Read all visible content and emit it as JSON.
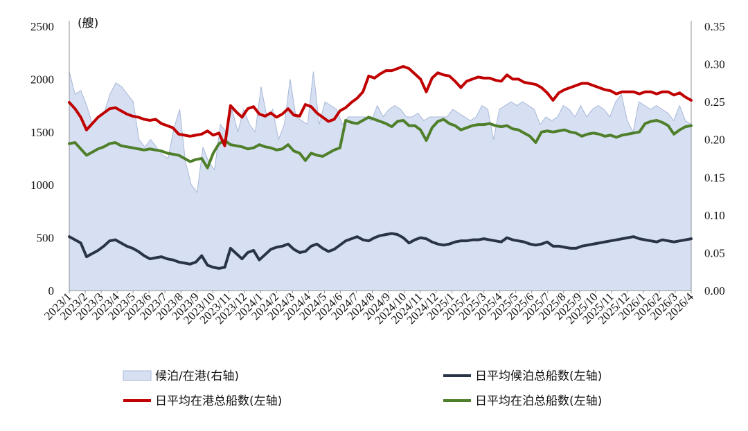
{
  "chart_data": {
    "type": "line",
    "unit_label": "(艘)",
    "left_axis": {
      "ylim": [
        0,
        2500
      ],
      "ticks": [
        "0",
        "500",
        "1000",
        "1500",
        "2000",
        "2500"
      ]
    },
    "right_axis": {
      "ylim": [
        0,
        0.35
      ],
      "ticks": [
        "0.00",
        "0.05",
        "0.10",
        "0.15",
        "0.20",
        "0.25",
        "0.30",
        "0.35"
      ]
    },
    "x_ticks": [
      "2023/1",
      "2023/2",
      "2023/3",
      "2023/4",
      "2023/5",
      "2023/6",
      "2023/7",
      "2023/8",
      "2023/9",
      "2023/10",
      "2023/11",
      "2023/12",
      "2024/1",
      "2024/2",
      "2024/3",
      "2024/4",
      "2024/5",
      "2024/6",
      "2024/7",
      "2024/8",
      "2024/9",
      "2024/10",
      "2024/11",
      "2024/12",
      "2025/1",
      "2025/2",
      "2025/3",
      "2025/4",
      "2025/5",
      "2025/6",
      "2025/7",
      "2025/8",
      "2025/9",
      "2025/10",
      "2025/11",
      "2025/12",
      "2026/1",
      "2026/2",
      "2026/3",
      "2026/4"
    ],
    "grid": false,
    "legend_position": "bottom",
    "series": [
      {
        "name": "候泊/在港(右轴)",
        "type": "area",
        "axis": "right",
        "color": "#d6e0f2",
        "edge_color": "#a8b8d8",
        "values": [
          0.29,
          0.26,
          0.265,
          0.245,
          0.22,
          0.23,
          0.235,
          0.26,
          0.275,
          0.27,
          0.26,
          0.25,
          0.2,
          0.19,
          0.2,
          0.19,
          0.18,
          0.175,
          0.215,
          0.24,
          0.17,
          0.14,
          0.13,
          0.19,
          0.17,
          0.16,
          0.22,
          0.21,
          0.24,
          0.21,
          0.24,
          0.22,
          0.21,
          0.27,
          0.23,
          0.24,
          0.2,
          0.22,
          0.28,
          0.23,
          0.225,
          0.22,
          0.29,
          0.22,
          0.25,
          0.245,
          0.24,
          0.22,
          0.23,
          0.23,
          0.23,
          0.23,
          0.225,
          0.245,
          0.23,
          0.24,
          0.245,
          0.24,
          0.23,
          0.23,
          0.235,
          0.225,
          0.23,
          0.23,
          0.23,
          0.23,
          0.24,
          0.235,
          0.23,
          0.225,
          0.23,
          0.245,
          0.24,
          0.2,
          0.24,
          0.245,
          0.25,
          0.245,
          0.25,
          0.245,
          0.24,
          0.22,
          0.23,
          0.225,
          0.23,
          0.245,
          0.24,
          0.23,
          0.245,
          0.23,
          0.24,
          0.245,
          0.24,
          0.23,
          0.25,
          0.26,
          0.225,
          0.21,
          0.25,
          0.245,
          0.24,
          0.245,
          0.24,
          0.235,
          0.225,
          0.245,
          0.225,
          0.22
        ]
      },
      {
        "name": "日平均在港总船数(左轴)",
        "type": "line",
        "axis": "left",
        "color": "#c00000",
        "values": [
          1780,
          1720,
          1640,
          1520,
          1580,
          1640,
          1680,
          1720,
          1730,
          1700,
          1670,
          1650,
          1640,
          1620,
          1610,
          1620,
          1580,
          1560,
          1540,
          1480,
          1470,
          1460,
          1470,
          1480,
          1510,
          1470,
          1490,
          1370,
          1750,
          1690,
          1640,
          1720,
          1740,
          1670,
          1650,
          1680,
          1640,
          1670,
          1720,
          1660,
          1650,
          1760,
          1740,
          1680,
          1640,
          1600,
          1620,
          1700,
          1730,
          1780,
          1820,
          1880,
          2030,
          2010,
          2050,
          2080,
          2080,
          2100,
          2120,
          2100,
          2050,
          2000,
          1880,
          2010,
          2060,
          2040,
          2030,
          1980,
          1920,
          1980,
          2000,
          2020,
          2010,
          2010,
          1990,
          1980,
          2040,
          2000,
          2000,
          1970,
          1960,
          1950,
          1920,
          1870,
          1800,
          1870,
          1900,
          1920,
          1940,
          1960,
          1960,
          1940,
          1920,
          1900,
          1890,
          1860,
          1880,
          1880,
          1880,
          1860,
          1880,
          1880,
          1860,
          1880,
          1880,
          1850,
          1870,
          1830,
          1800,
          1980,
          2050,
          2000,
          2020,
          2060,
          2080,
          2060,
          2020,
          1990,
          1960,
          1940,
          1910,
          1900,
          1880,
          1880,
          1860,
          1850,
          1840,
          1830,
          1820,
          1810,
          1800,
          1800,
          1780,
          1760,
          1750,
          1760,
          1780,
          1790,
          1800,
          1810,
          1820,
          1830,
          1850,
          1870,
          1880,
          1900,
          1920,
          1940,
          1960,
          1980,
          2000,
          2020,
          2010,
          2000,
          1990,
          1980,
          1970,
          1960,
          1950,
          1940,
          1930,
          1920,
          1910,
          1900,
          1890,
          1880,
          1870,
          1860,
          1850,
          1840,
          1830,
          1820,
          1810,
          1800,
          1790,
          1780,
          1770,
          1760,
          1750,
          1740,
          1730,
          1720,
          1710
        ]
      },
      {
        "name": "日平均候泊总船数(左轴)",
        "type": "line",
        "axis": "left",
        "color": "#2a3447",
        "values": [
          510,
          480,
          450,
          320,
          350,
          380,
          420,
          470,
          480,
          450,
          420,
          400,
          370,
          330,
          300,
          310,
          320,
          300,
          290,
          270,
          260,
          250,
          270,
          330,
          240,
          220,
          210,
          220,
          400,
          350,
          300,
          360,
          380,
          290,
          340,
          390,
          410,
          420,
          440,
          390,
          360,
          370,
          420,
          440,
          400,
          370,
          390,
          430,
          470,
          490,
          510,
          480,
          470,
          500,
          520,
          530,
          540,
          530,
          500,
          450,
          480,
          500,
          490,
          460,
          440,
          430,
          440,
          460,
          470,
          470,
          480,
          480,
          490,
          480,
          470,
          460,
          500,
          480,
          470,
          460,
          440,
          430,
          440,
          460,
          420,
          420,
          410,
          400,
          400,
          420,
          430,
          440,
          450,
          460,
          470,
          480,
          490,
          500,
          510,
          490,
          480,
          470,
          460,
          480,
          470,
          460,
          470,
          480,
          490,
          470,
          460
        ]
      },
      {
        "name": "日平均在泊总船数(左轴)",
        "type": "line",
        "axis": "left",
        "color": "#4f7f2a",
        "values": [
          1390,
          1400,
          1340,
          1280,
          1310,
          1340,
          1360,
          1390,
          1400,
          1370,
          1360,
          1350,
          1340,
          1330,
          1340,
          1330,
          1320,
          1300,
          1290,
          1280,
          1250,
          1220,
          1240,
          1250,
          1160,
          1300,
          1390,
          1420,
          1380,
          1370,
          1360,
          1340,
          1350,
          1380,
          1360,
          1350,
          1330,
          1340,
          1380,
          1320,
          1300,
          1230,
          1300,
          1280,
          1270,
          1300,
          1330,
          1350,
          1610,
          1590,
          1580,
          1610,
          1640,
          1620,
          1600,
          1580,
          1550,
          1600,
          1610,
          1560,
          1560,
          1520,
          1420,
          1540,
          1600,
          1620,
          1580,
          1560,
          1520,
          1540,
          1560,
          1570,
          1570,
          1580,
          1560,
          1550,
          1560,
          1530,
          1520,
          1490,
          1460,
          1400,
          1500,
          1510,
          1500,
          1510,
          1520,
          1500,
          1490,
          1460,
          1480,
          1490,
          1480,
          1460,
          1470,
          1450,
          1470,
          1480,
          1490,
          1500,
          1580,
          1600,
          1610,
          1590,
          1560,
          1480,
          1520,
          1550,
          1560,
          1500,
          1490,
          1470,
          1450,
          1460,
          1470,
          1480,
          1470,
          1460,
          1450,
          1440,
          1430,
          1420,
          1400,
          1380,
          1360,
          1340,
          1330,
          1320,
          1310,
          1330,
          1350,
          1370,
          1390,
          1410,
          1430,
          1450,
          1470,
          1490,
          1510,
          1530,
          1550,
          1570,
          1590,
          1610,
          1630,
          1650,
          1670,
          1690,
          1680,
          1670,
          1660,
          1650,
          1640,
          1630,
          1620,
          1610,
          1600,
          1590,
          1580,
          1570,
          1560,
          1550,
          1540,
          1530,
          1520,
          1510,
          1500,
          1490,
          1480,
          1470,
          1460,
          1450,
          1440,
          1430,
          1420,
          1410,
          1400,
          1390,
          1380,
          1370,
          1360,
          1350,
          1340,
          1330,
          1320,
          1310,
          1300
        ]
      }
    ]
  }
}
